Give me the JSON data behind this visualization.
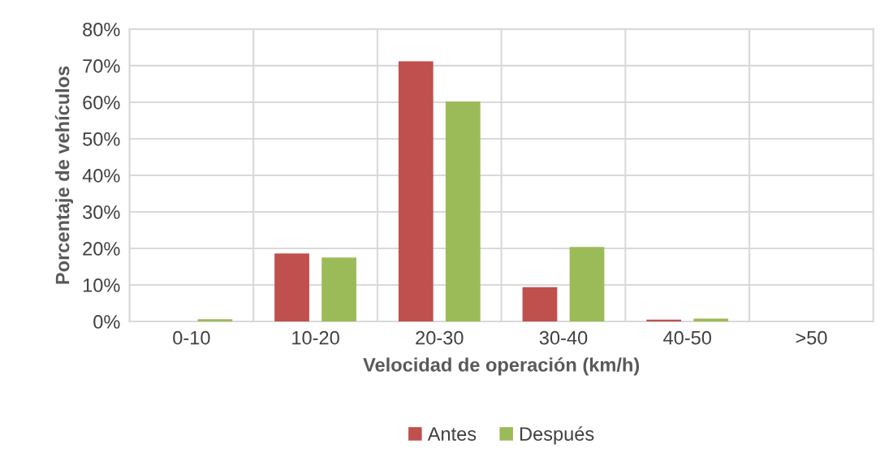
{
  "chart_data": {
    "type": "bar",
    "xlabel": "Velocidad de operación (km/h)",
    "ylabel": "Porcentaje de vehículos",
    "categories": [
      "0-10",
      "10-20",
      "20-30",
      "30-40",
      "40-50",
      ">50"
    ],
    "series": [
      {
        "name": "Antes",
        "color": "#c0504d",
        "values": [
          0,
          18.6,
          71.2,
          9.4,
          0.5,
          0
        ]
      },
      {
        "name": "Después",
        "color": "#9bbb59",
        "values": [
          0.6,
          17.5,
          60.2,
          20.4,
          0.8,
          0
        ]
      }
    ],
    "ylim": [
      0,
      80
    ],
    "yticks": [
      {
        "value": 0,
        "label": "0%"
      },
      {
        "value": 10,
        "label": "10%"
      },
      {
        "value": 20,
        "label": "20%"
      },
      {
        "value": 30,
        "label": "30%"
      },
      {
        "value": 40,
        "label": "40%"
      },
      {
        "value": 50,
        "label": "50%"
      },
      {
        "value": 60,
        "label": "60%"
      },
      {
        "value": 70,
        "label": "70%"
      },
      {
        "value": 80,
        "label": "80%"
      }
    ],
    "grid": true,
    "legend": "bottom"
  }
}
